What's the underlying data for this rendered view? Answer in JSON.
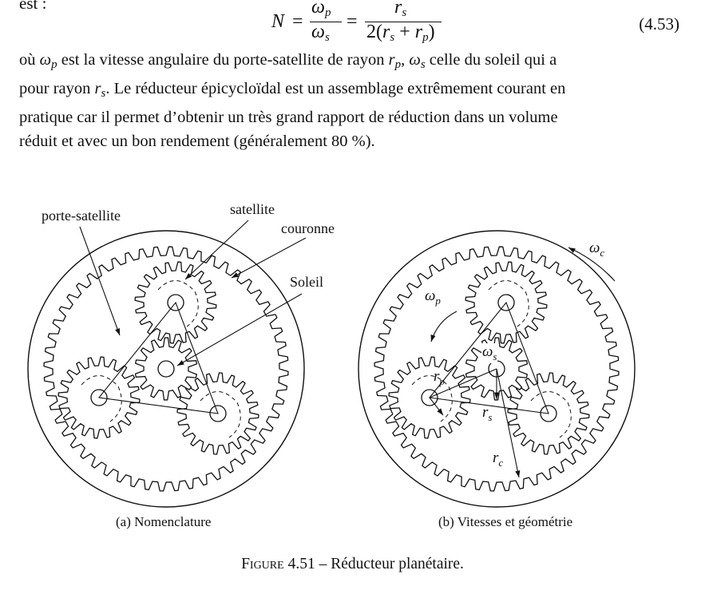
{
  "text": {
    "top_fragment": "est :",
    "equation": {
      "lhs": "N",
      "num1_sym": "ω",
      "num1_sub": "p",
      "den1_sym": "ω",
      "den1_sub": "s",
      "num2_sym": "r",
      "num2_sub": "s",
      "den2_prefix": "2(",
      "den2_r1": "r",
      "den2_r1_sub": "s",
      "den2_plus": " + ",
      "den2_r2": "r",
      "den2_r2_sub": "p",
      "den2_suffix": ")",
      "number": "(4.53)"
    },
    "paragraph": {
      "line1_a": "où ",
      "line1_sym1": "ω",
      "line1_sub1": "p",
      "line1_b": " est la vitesse angulaire du porte-satellite de rayon ",
      "line1_sym2": "r",
      "line1_sub2": "p",
      "line1_c": ", ",
      "line1_sym3": "ω",
      "line1_sub3": "s",
      "line1_d": " celle du soleil qui a",
      "line2_a": "pour rayon ",
      "line2_sym": "r",
      "line2_sub": "s",
      "line2_b": ". Le réducteur épicycloïdal est un assemblage extrêmement courant en",
      "line3": "pratique car il permet d’obtenir un très grand rapport de réduction dans un volume",
      "line4": "réduit et avec un bon rendement (généralement 80 %)."
    },
    "figure": {
      "labels_a": {
        "porte_satellite": "porte-satellite",
        "satellite": "satellite",
        "couronne": "couronne",
        "soleil": "Soleil"
      },
      "labels_b": {
        "omega_c_sym": "ω",
        "omega_c_sub": "c",
        "omega_p_sym": "ω",
        "omega_p_sub": "p",
        "omega_s_sym": "ω",
        "omega_s_sub": "s",
        "r_p_sym": "r",
        "r_p_sub": "p",
        "r_s_sym": "r",
        "r_s_sub": "s",
        "r_c_sym": "r",
        "r_c_sub": "c"
      },
      "subcaption_a": "(a) Nomenclature",
      "subcaption_b": "(b) Vitesses et géométrie",
      "caption_prefix": "Figure",
      "caption_rest": " 4.51 – Réducteur planétaire."
    }
  }
}
